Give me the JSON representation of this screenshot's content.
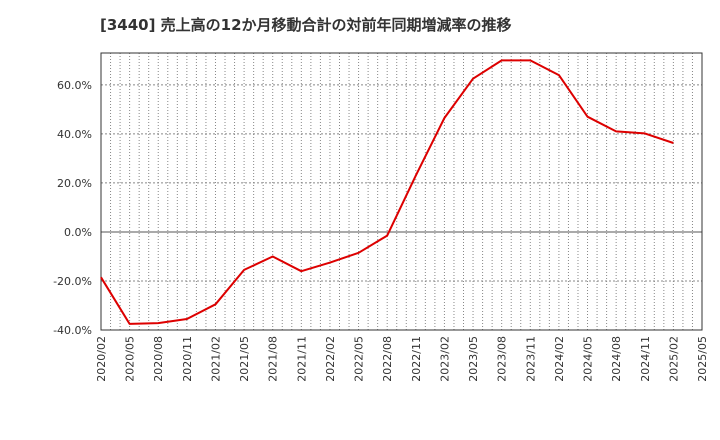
{
  "chart_data": {
    "type": "line",
    "title": "[3440]  売上高の12か月移動合計の対前年同期増減率の推移",
    "xlabel": "",
    "ylabel": "",
    "ylim": [
      -40,
      73
    ],
    "grid": true,
    "categories": [
      "2020/02",
      "2020/05",
      "2020/08",
      "2020/11",
      "2021/02",
      "2021/05",
      "2021/08",
      "2021/11",
      "2022/02",
      "2022/05",
      "2022/08",
      "2022/11",
      "2023/02",
      "2023/05",
      "2023/08",
      "2023/11",
      "2024/02",
      "2024/05",
      "2024/08",
      "2024/11",
      "2025/02",
      "2025/05"
    ],
    "y_ticks": [
      {
        "value": 60,
        "label": "60.0%"
      },
      {
        "value": 40,
        "label": "40.0%"
      },
      {
        "value": 20,
        "label": "20.0%"
      },
      {
        "value": 0,
        "label": "0.0%"
      },
      {
        "value": -20,
        "label": "-20.0%"
      },
      {
        "value": -40,
        "label": "-40.0%"
      }
    ],
    "series": [
      {
        "name": "対前年同期増減率",
        "color": "#dd0000",
        "values": [
          -18.5,
          -37.5,
          -37.2,
          -35.5,
          -29.5,
          -15.5,
          -10.0,
          -16.0,
          -12.5,
          -8.5,
          -1.5,
          23.0,
          46.5,
          62.5,
          70.0,
          70.0,
          64.0,
          47.0,
          41.0,
          40.2,
          36.3,
          null
        ]
      }
    ]
  }
}
